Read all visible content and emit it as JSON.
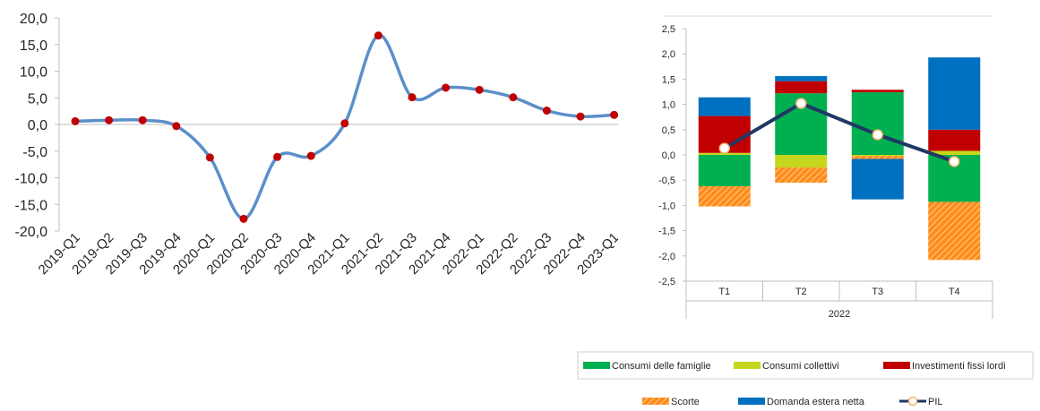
{
  "chart_data": [
    {
      "type": "line",
      "title": "",
      "xlabel": "",
      "ylabel": "",
      "ylim": [
        -20,
        20
      ],
      "yticks": [
        "20,0",
        "15,0",
        "10,0",
        "5,0",
        "0,0",
        "-5,0",
        "-10,0",
        "-15,0",
        "-20,0"
      ],
      "categories": [
        "2019-Q1",
        "2019-Q2",
        "2019-Q3",
        "2019-Q4",
        "2020-Q1",
        "2020-Q2",
        "2020-Q3",
        "2020-Q4",
        "2021-Q1",
        "2021-Q2",
        "2021-Q3",
        "2021-Q4",
        "2022-Q1",
        "2022-Q2",
        "2022-Q3",
        "2022-Q4",
        "2023-Q1"
      ],
      "series": [
        {
          "values": [
            0.6,
            0.8,
            0.8,
            -0.3,
            -6.2,
            -17.7,
            -6.1,
            -5.9,
            0.2,
            16.7,
            5.1,
            6.9,
            6.5,
            5.1,
            2.6,
            1.5,
            1.8
          ],
          "line_color": "#5b8fc9",
          "marker_color": "#c00000"
        }
      ],
      "grid": false
    },
    {
      "type": "bar",
      "title": "",
      "xlabel": "2022",
      "ylabel": "",
      "ylim": [
        -2.5,
        2.5
      ],
      "yticks": [
        "2,5",
        "2,0",
        "1,5",
        "1,0",
        "0,5",
        "0,0",
        "-0,5",
        "-1,0",
        "-1,5",
        "-2,0",
        "-2,5"
      ],
      "categories": [
        "T1",
        "T2",
        "T3",
        "T4"
      ],
      "stacked": true,
      "series": [
        {
          "name": "Consumi delle famiglie",
          "values": [
            -0.62,
            1.22,
            1.24,
            -0.93
          ],
          "color": "#00b050"
        },
        {
          "name": "Consumi collettivi",
          "values": [
            0.04,
            -0.25,
            -0.02,
            0.08
          ],
          "color": "#c6d61e"
        },
        {
          "name": "Investimenti fissi lordi",
          "values": [
            0.73,
            0.24,
            0.05,
            0.42
          ],
          "color": "#c00000"
        },
        {
          "name": "Scorte",
          "values": [
            -0.4,
            -0.3,
            -0.06,
            -1.15
          ],
          "color": "#ff8a1f",
          "pattern": "hatch"
        },
        {
          "name": "Domanda estera netta",
          "values": [
            0.37,
            0.1,
            -0.8,
            1.43
          ],
          "color": "#0070c0"
        },
        {
          "name": "PIL",
          "values": [
            0.13,
            1.02,
            0.4,
            -0.13
          ],
          "color": "#1f3864",
          "kind": "line"
        }
      ],
      "legend": "bottom",
      "grid": false
    }
  ]
}
